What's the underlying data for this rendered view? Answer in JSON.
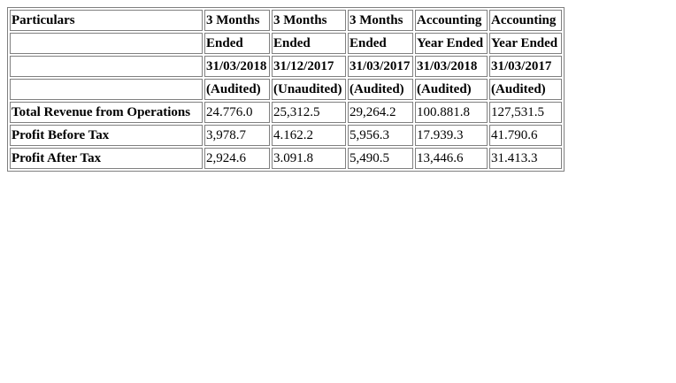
{
  "table": {
    "header_rows": [
      [
        "Particulars",
        "3 Months",
        "3 Months",
        "3 Months",
        "Accounting",
        "Accounting"
      ],
      [
        "",
        "Ended",
        "Ended",
        "Ended",
        "Year Ended",
        "Year Ended"
      ],
      [
        "",
        "31/03/2018",
        "31/12/2017",
        "31/03/2017",
        "31/03/2018",
        "31/03/2017"
      ],
      [
        "",
        "(Audited)",
        "(Unaudited)",
        "(Audited)",
        "(Audited)",
        "(Audited)"
      ]
    ],
    "rows": [
      {
        "label": "Total Revenue from Operations",
        "values": [
          "24.776.0",
          "25,312.5",
          "29,264.2",
          "100.881.8",
          "127,531.5"
        ]
      },
      {
        "label": "Profit Before Tax",
        "values": [
          "3,978.7",
          "4.162.2",
          "5,956.3",
          "17.939.3",
          "41.790.6"
        ]
      },
      {
        "label": "Profit After Tax",
        "values": [
          "2,924.6",
          "3.091.8",
          "5,490.5",
          "13,446.6",
          "31.413.3"
        ]
      }
    ]
  }
}
